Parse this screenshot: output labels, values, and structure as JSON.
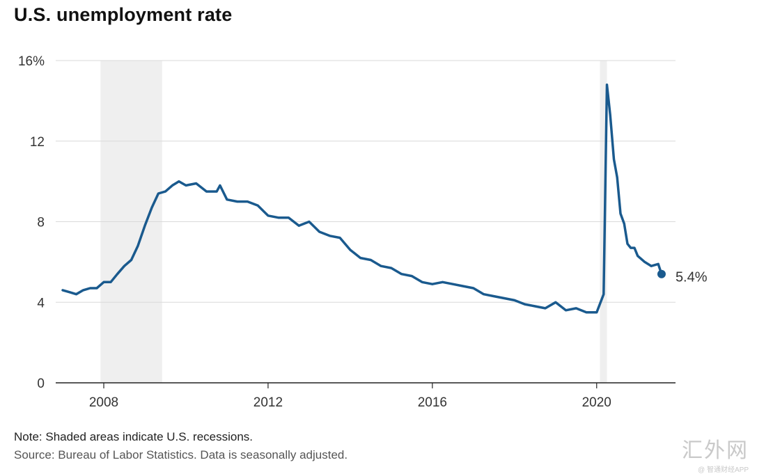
{
  "title": "U.S. unemployment rate",
  "note": "Note: Shaded areas indicate U.S. recessions.",
  "source": "Source: Bureau of Labor Statistics. Data is seasonally adjusted.",
  "watermark": {
    "text": "汇外网",
    "subtext": "@ 智通财经APP"
  },
  "colors": {
    "line": "#1a5a8e",
    "recession": "#efefef",
    "grid": "#d9d9d9",
    "axis": "#222222"
  },
  "chart_data": {
    "type": "line",
    "title": "U.S. unemployment rate",
    "xlabel": "",
    "ylabel": "",
    "ylim": [
      0,
      16
    ],
    "xlim": [
      2006.83,
      2021.92
    ],
    "yticks": [
      0,
      4,
      8,
      12,
      16
    ],
    "ytick_labels": [
      "0",
      "4",
      "8",
      "12",
      "16%"
    ],
    "xticks": [
      2008,
      2012,
      2016,
      2020
    ],
    "xtick_labels": [
      "2008",
      "2012",
      "2016",
      "2020"
    ],
    "grid": true,
    "recessions": [
      [
        2007.92,
        2009.42
      ],
      [
        2020.08,
        2020.25
      ]
    ],
    "end_label": "5.4%",
    "series": [
      {
        "x": [
          2007.0,
          2007.17,
          2007.33,
          2007.5,
          2007.67,
          2007.83,
          2008.0,
          2008.17,
          2008.33,
          2008.5,
          2008.67,
          2008.83,
          2009.0,
          2009.17,
          2009.33,
          2009.5,
          2009.67,
          2009.83,
          2010.0,
          2010.25,
          2010.5,
          2010.75,
          2010.83,
          2011.0,
          2011.25,
          2011.5,
          2011.75,
          2012.0,
          2012.25,
          2012.5,
          2012.75,
          2013.0,
          2013.25,
          2013.5,
          2013.75,
          2014.0,
          2014.25,
          2014.5,
          2014.75,
          2015.0,
          2015.25,
          2015.5,
          2015.75,
          2016.0,
          2016.25,
          2016.5,
          2016.75,
          2017.0,
          2017.25,
          2017.5,
          2017.75,
          2018.0,
          2018.25,
          2018.5,
          2018.75,
          2019.0,
          2019.25,
          2019.5,
          2019.75,
          2020.0,
          2020.17,
          2020.25,
          2020.33,
          2020.42,
          2020.5,
          2020.58,
          2020.67,
          2020.75,
          2020.83,
          2020.92,
          2021.0,
          2021.17,
          2021.33,
          2021.5,
          2021.58
        ],
        "values": [
          4.6,
          4.5,
          4.4,
          4.6,
          4.7,
          4.7,
          5.0,
          5.0,
          5.4,
          5.8,
          6.1,
          6.8,
          7.8,
          8.7,
          9.4,
          9.5,
          9.8,
          10.0,
          9.8,
          9.9,
          9.5,
          9.5,
          9.8,
          9.1,
          9.0,
          9.0,
          8.8,
          8.3,
          8.2,
          8.2,
          7.8,
          8.0,
          7.5,
          7.3,
          7.2,
          6.6,
          6.2,
          6.1,
          5.8,
          5.7,
          5.4,
          5.3,
          5.0,
          4.9,
          5.0,
          4.9,
          4.8,
          4.7,
          4.4,
          4.3,
          4.2,
          4.1,
          3.9,
          3.8,
          3.7,
          4.0,
          3.6,
          3.7,
          3.5,
          3.5,
          4.4,
          14.8,
          13.3,
          11.1,
          10.2,
          8.4,
          7.9,
          6.9,
          6.7,
          6.7,
          6.3,
          6.0,
          5.8,
          5.9,
          5.4
        ]
      }
    ]
  }
}
